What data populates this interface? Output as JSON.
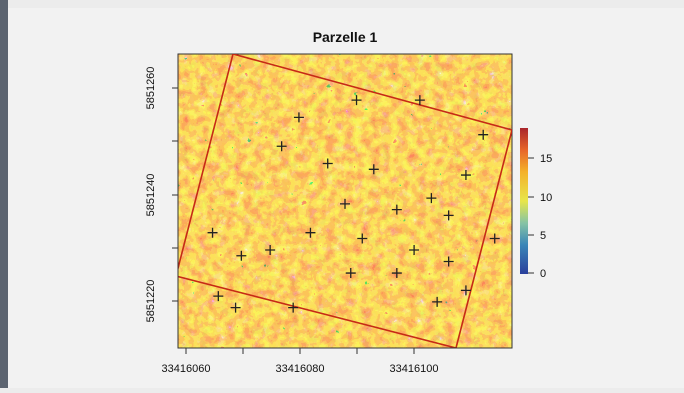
{
  "chart_data": {
    "type": "heatmap",
    "title": "Parzelle 1",
    "xlabel": "",
    "ylabel": "",
    "x_ticks": [
      "33416060",
      "33416080",
      "33416100"
    ],
    "y_ticks": [
      "5851220",
      "5851240",
      "5851260"
    ],
    "xlim": [
      33416057,
      33416115
    ],
    "ylim": [
      5851213,
      5851264
    ],
    "colorbar": {
      "ticks": [
        "0",
        "5",
        "10",
        "15"
      ],
      "range": [
        0,
        19
      ]
    },
    "colors": {
      "high": "#c9302a",
      "mid": "#f1b41b",
      "low": "#f7e431",
      "lowest": "#1f4ea8",
      "plot_boundary": "#c62a16",
      "tree_marker": "#222222"
    },
    "trees": [
      [
        33416078,
        5851253
      ],
      [
        33416088,
        5851256
      ],
      [
        33416099,
        5851256
      ],
      [
        33416075,
        5851248
      ],
      [
        33416083,
        5851245
      ],
      [
        33416091,
        5851244
      ],
      [
        33416107,
        5851243
      ],
      [
        33416110,
        5851250
      ],
      [
        33416086,
        5851238
      ],
      [
        33416095,
        5851237
      ],
      [
        33416101,
        5851239
      ],
      [
        33416104,
        5851236
      ],
      [
        33416063,
        5851233
      ],
      [
        33416068,
        5851229
      ],
      [
        33416073,
        5851230
      ],
      [
        33416080,
        5851233
      ],
      [
        33416089,
        5851232
      ],
      [
        33416098,
        5851230
      ],
      [
        33416104,
        5851228
      ],
      [
        33416087,
        5851226
      ],
      [
        33416095,
        5851226
      ],
      [
        33416064,
        5851222
      ],
      [
        33416067,
        5851220
      ],
      [
        33416077,
        5851220
      ],
      [
        33416102,
        5851221
      ],
      [
        33416107,
        5851223
      ],
      [
        33416112,
        5851232
      ]
    ]
  }
}
